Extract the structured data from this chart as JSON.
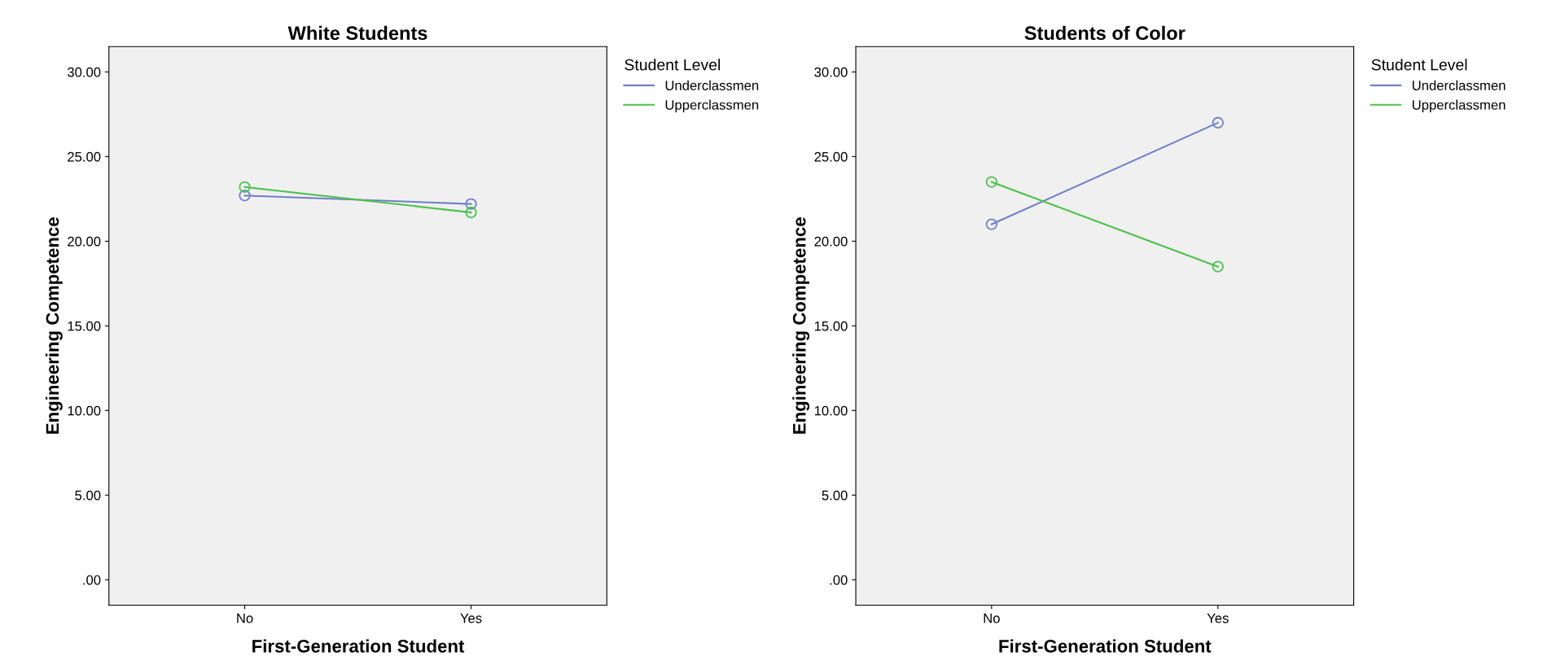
{
  "chart_data": [
    {
      "type": "line",
      "title": "White Students",
      "xlabel": "First-Generation Student",
      "ylabel": "Engineering Competence",
      "legend_title": "Student Level",
      "categories": [
        "No",
        "Yes"
      ],
      "series": [
        {
          "name": "Underclassmen",
          "color": "#7080c8",
          "values": [
            22.7,
            22.2
          ]
        },
        {
          "name": "Upperclassmen",
          "color": "#4cc24c",
          "values": [
            23.2,
            21.7
          ]
        }
      ],
      "ylim": [
        -1.5,
        31.5
      ],
      "yticks": [
        {
          "value": 0,
          "label": ".00"
        },
        {
          "value": 5,
          "label": "5.00"
        },
        {
          "value": 10,
          "label": "10.00"
        },
        {
          "value": 15,
          "label": "15.00"
        },
        {
          "value": 20,
          "label": "20.00"
        },
        {
          "value": 25,
          "label": "25.00"
        },
        {
          "value": 30,
          "label": "30.00"
        }
      ],
      "marker": "circle",
      "legend": "right",
      "grid": false
    },
    {
      "type": "line",
      "title": "Students of Color",
      "xlabel": "First-Generation Student",
      "ylabel": "Engineering Competence",
      "legend_title": "Student Level",
      "categories": [
        "No",
        "Yes"
      ],
      "series": [
        {
          "name": "Underclassmen",
          "color": "#7080c8",
          "values": [
            21.0,
            27.0
          ]
        },
        {
          "name": "Upperclassmen",
          "color": "#4cc24c",
          "values": [
            23.5,
            18.5
          ]
        }
      ],
      "ylim": [
        -1.5,
        31.5
      ],
      "yticks": [
        {
          "value": 0,
          "label": ".00"
        },
        {
          "value": 5,
          "label": "5.00"
        },
        {
          "value": 10,
          "label": "10.00"
        },
        {
          "value": 15,
          "label": "15.00"
        },
        {
          "value": 20,
          "label": "20.00"
        },
        {
          "value": 25,
          "label": "25.00"
        },
        {
          "value": 30,
          "label": "30.00"
        }
      ],
      "marker": "circle",
      "legend": "right",
      "grid": false
    }
  ]
}
